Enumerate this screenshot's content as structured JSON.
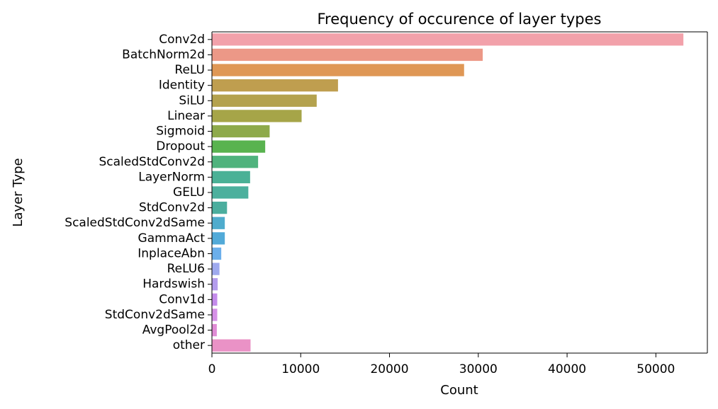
{
  "chart_data": {
    "type": "bar",
    "orientation": "horizontal",
    "title": "Frequency of occurence of layer types",
    "xlabel": "Count",
    "ylabel": "Layer Type",
    "xlim": [
      0,
      55800
    ],
    "xticks": [
      0,
      10000,
      20000,
      30000,
      40000,
      50000
    ],
    "grid": false,
    "legend": "none",
    "categories": [
      "Conv2d",
      "BatchNorm2d",
      "ReLU",
      "Identity",
      "SiLU",
      "Linear",
      "Sigmoid",
      "Dropout",
      "ScaledStdConv2d",
      "LayerNorm",
      "GELU",
      "StdConv2d",
      "ScaledStdConv2dSame",
      "GammaAct",
      "InplaceAbn",
      "ReLU6",
      "Hardswish",
      "Conv1d",
      "StdConv2dSame",
      "AvgPool2d",
      "other"
    ],
    "values": [
      53100,
      30500,
      28400,
      14200,
      11800,
      10100,
      6500,
      6000,
      5200,
      4300,
      4100,
      1700,
      1450,
      1450,
      1050,
      850,
      650,
      600,
      600,
      550,
      4350
    ],
    "colors": [
      "#f2a1aa",
      "#ec9887",
      "#df9755",
      "#bf9e4f",
      "#b4a24e",
      "#a6a548",
      "#8eaa4b",
      "#59b34f",
      "#4fb37d",
      "#4ab196",
      "#4cb09d",
      "#4bae9e",
      "#4faccd",
      "#52aad8",
      "#6bafeb",
      "#9ea9ee",
      "#b49ded",
      "#c48ceb",
      "#d690e7",
      "#e08cd5",
      "#ea92c6"
    ]
  }
}
